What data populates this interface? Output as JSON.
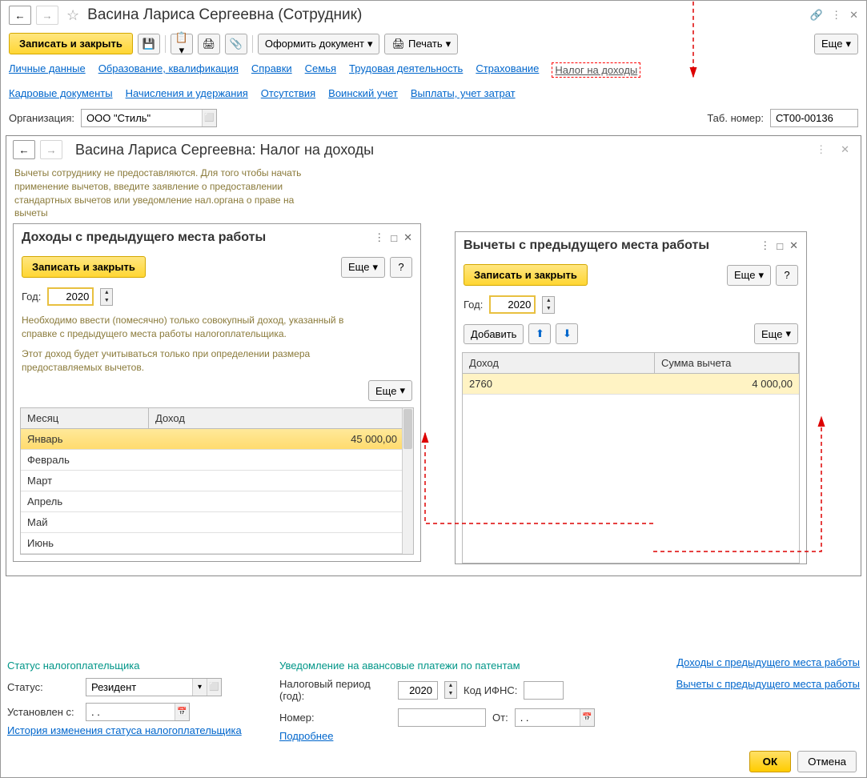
{
  "main": {
    "title": "Васина Лариса Сергеевна (Сотрудник)",
    "save_close": "Записать и закрыть",
    "doc_btn": "Оформить документ",
    "print_btn": "Печать",
    "more_btn": "Еще"
  },
  "tabs1": [
    "Личные данные",
    "Образование, квалификация",
    "Справки",
    "Семья",
    "Трудовая деятельность",
    "Страхование",
    "Налог на доходы"
  ],
  "tabs2": [
    "Кадровые документы",
    "Начисления и удержания",
    "Отсутствия",
    "Воинский учет",
    "Выплаты, учет затрат"
  ],
  "org": {
    "label": "Организация:",
    "value": "ООО \"Стиль\"",
    "tab_label": "Таб. номер:",
    "tab_value": "СТ00-00136"
  },
  "sub": {
    "title": "Васина Лариса Сергеевна: Налог на доходы",
    "info": "Вычеты сотруднику не предоставляются. Для того чтобы начать применение вычетов, введите заявление о предоставлении стандартных вычетов или уведомление нал.органа о праве на вычеты"
  },
  "panel_left": {
    "title": "Доходы с предыдущего места работы",
    "save": "Записать и закрыть",
    "more": "Еще",
    "year_label": "Год:",
    "year": "2020",
    "note1": "Необходимо ввести (помесячно) только совокупный доход, указанный в справке с предыдущего места работы налогоплательщика.",
    "note2": "Этот доход будет учитываться только при определении размера предоставляемых вычетов.",
    "col1": "Месяц",
    "col2": "Доход",
    "rows": [
      {
        "m": "Январь",
        "v": "45 000,00",
        "sel": true
      },
      {
        "m": "Февраль",
        "v": ""
      },
      {
        "m": "Март",
        "v": ""
      },
      {
        "m": "Апрель",
        "v": ""
      },
      {
        "m": "Май",
        "v": ""
      },
      {
        "m": "Июнь",
        "v": ""
      }
    ]
  },
  "panel_right": {
    "title": "Вычеты с предыдущего места работы",
    "save": "Записать и закрыть",
    "more": "Еще",
    "year_label": "Год:",
    "year": "2020",
    "add": "Добавить",
    "col1": "Доход",
    "col2": "Сумма вычета",
    "rows": [
      {
        "d": "2760",
        "s": "4 000,00",
        "sel": true
      }
    ]
  },
  "bottom": {
    "status_header": "Статус налогоплательщика",
    "status_label": "Статус:",
    "status_value": "Резидент",
    "set_label": "Установлен с:",
    "set_value": ". .",
    "history_link": "История изменения статуса налогоплательщика",
    "notice_header": "Уведомление на авансовые платежи по патентам",
    "period_label": "Налоговый период (год):",
    "period_value": "2020",
    "ifns_label": "Код ИФНС:",
    "ifns_value": "",
    "number_label": "Номер:",
    "number_value": "",
    "from_label": "От:",
    "from_value": ". .",
    "more_link": "Подробнее",
    "link1": "Доходы с предыдущего места работы",
    "link2": "Вычеты с предыдущего места работы"
  },
  "footer": {
    "ok": "ОК",
    "cancel": "Отмена"
  }
}
